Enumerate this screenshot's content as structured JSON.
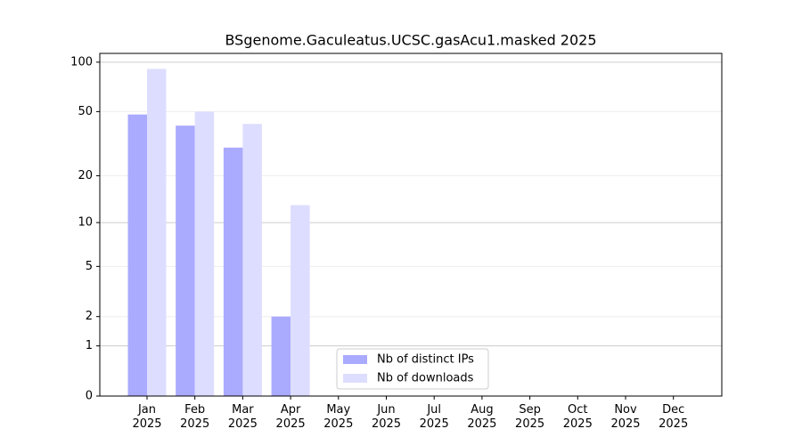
{
  "chart_data": {
    "type": "bar",
    "title": "BSgenome.Gaculeatus.UCSC.gasAcu1.masked 2025",
    "categories": [
      "Jan\n2025",
      "Feb\n2025",
      "Mar\n2025",
      "Apr\n2025",
      "May\n2025",
      "Jun\n2025",
      "Jul\n2025",
      "Aug\n2025",
      "Sep\n2025",
      "Oct\n2025",
      "Nov\n2025",
      "Dec\n2025"
    ],
    "series": [
      {
        "name": "Nb of distinct IPs",
        "color": "#aaaaff",
        "values": [
          48,
          41,
          30,
          2,
          null,
          null,
          null,
          null,
          null,
          null,
          null,
          null
        ]
      },
      {
        "name": "Nb of downloads",
        "color": "#ddddff",
        "values": [
          91,
          50,
          42,
          13,
          null,
          null,
          null,
          null,
          null,
          null,
          null,
          null
        ]
      }
    ],
    "yscale": "log1p",
    "ylim": [
      0,
      113
    ],
    "yticks": [
      0,
      1,
      2,
      5,
      10,
      20,
      50,
      100
    ],
    "grid": true,
    "legend": "lower center"
  }
}
